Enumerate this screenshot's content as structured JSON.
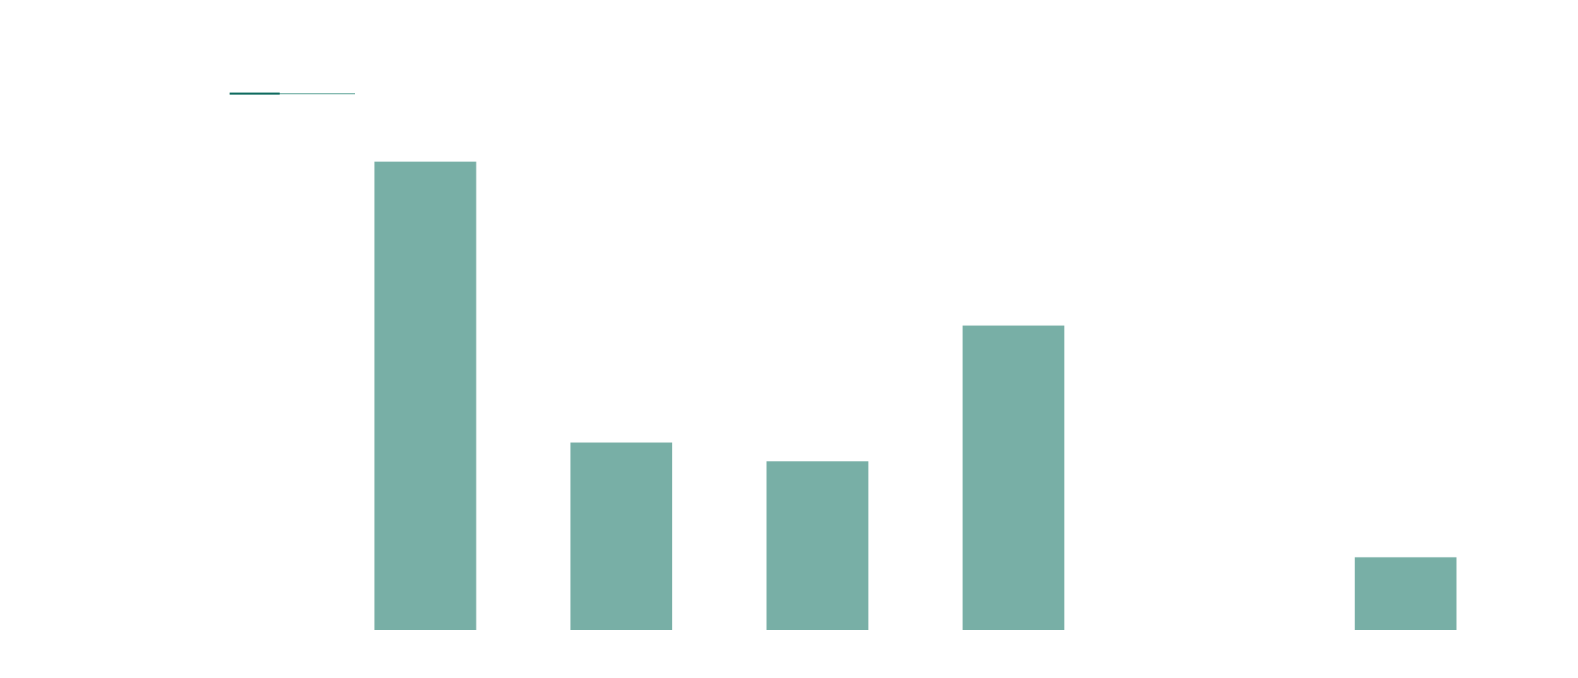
{
  "chart_data": {
    "type": "bar",
    "title": "",
    "xlabel": "",
    "ylabel": "",
    "categories": [
      "",
      "",
      "",
      "",
      "",
      ""
    ],
    "values": [
      100,
      40,
      36,
      65,
      0,
      15.5
    ],
    "ylim": [
      0,
      100
    ],
    "grid": false,
    "legend": "none"
  },
  "colors": {
    "bar": "#78afa6",
    "indicator_dark": "#0f6b5f",
    "indicator_light": "#7fb6ad",
    "background": "#ffffff"
  },
  "tab_indicator": {
    "active_fraction": 0.4
  }
}
